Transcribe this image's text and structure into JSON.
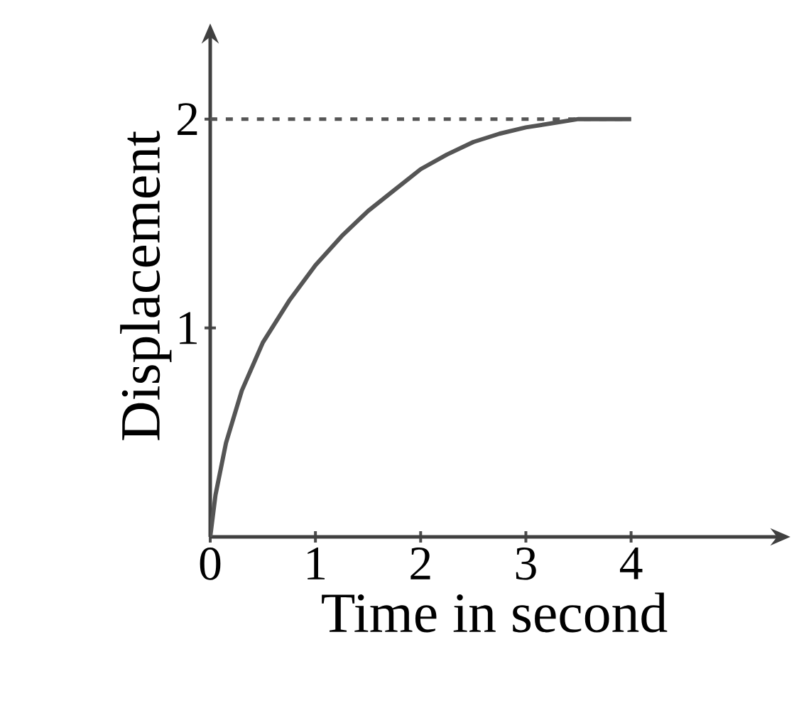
{
  "chart_data": {
    "type": "line",
    "xlabel": "Time in second",
    "ylabel": "Displacement",
    "x": [
      0,
      0.05,
      0.15,
      0.3,
      0.5,
      0.75,
      1,
      1.25,
      1.5,
      1.75,
      2,
      2.25,
      2.5,
      2.75,
      3,
      3.25,
      3.5,
      4
    ],
    "series": [
      {
        "color": "#555555",
        "values": [
          0,
          0.2,
          0.45,
          0.7,
          0.93,
          1.13,
          1.3,
          1.44,
          1.56,
          1.66,
          1.76,
          1.83,
          1.89,
          1.93,
          1.96,
          1.98,
          2,
          2
        ]
      }
    ],
    "xlim": [
      0,
      5.4
    ],
    "ylim": [
      0,
      2.4
    ],
    "xticks": [
      0,
      1,
      2,
      3,
      4
    ],
    "yticks": [
      1,
      2
    ],
    "ref_lines": [
      {
        "axis": "y",
        "value": 2,
        "color": "#555555",
        "line_style": "dashed"
      }
    ],
    "grid": false,
    "marker": "none",
    "line_style": "solid"
  }
}
